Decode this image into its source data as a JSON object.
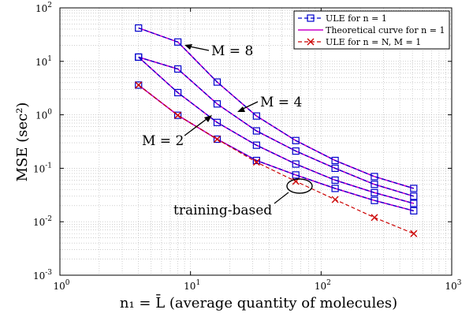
{
  "chart_data": {
    "type": "line",
    "xscale": "log",
    "yscale": "log",
    "xlim": [
      1,
      1000
    ],
    "ylim": [
      0.001,
      100
    ],
    "grid": true,
    "legend_position": "top-right",
    "xlabel": "n₁ = L̄ (average quantity of molecules)",
    "ylabel": "MSE (sec²)",
    "x_ticks": [
      {
        "value": 1,
        "base": "10",
        "exp": "0"
      },
      {
        "value": 10,
        "base": "10",
        "exp": "1"
      },
      {
        "value": 100,
        "base": "10",
        "exp": "2"
      },
      {
        "value": 1000,
        "base": "10",
        "exp": "3"
      }
    ],
    "y_ticks": [
      {
        "value": 0.001,
        "base": "10",
        "exp": "-3"
      },
      {
        "value": 0.01,
        "base": "10",
        "exp": "-2"
      },
      {
        "value": 0.1,
        "base": "10",
        "exp": "-1"
      },
      {
        "value": 1,
        "base": "10",
        "exp": "0"
      },
      {
        "value": 10,
        "base": "10",
        "exp": "1"
      },
      {
        "value": 100,
        "base": "10",
        "exp": "2"
      }
    ],
    "x": [
      4,
      8,
      16,
      32,
      64,
      128,
      256,
      512
    ],
    "series": [
      {
        "name": "ULE for n = 1",
        "group": "M = 1",
        "style": "sim",
        "values": [
          3.6,
          0.98,
          0.35,
          0.14,
          0.075,
          0.042,
          0.025,
          0.016
        ]
      },
      {
        "name": "Theoretical curve for n = 1",
        "group": "M = 1",
        "style": "theory",
        "values": [
          3.6,
          0.98,
          0.35,
          0.14,
          0.075,
          0.042,
          0.025,
          0.016
        ]
      },
      {
        "name": "ULE for n = 1",
        "group": "M = 2",
        "style": "sim",
        "values": [
          12,
          2.6,
          0.72,
          0.27,
          0.12,
          0.06,
          0.035,
          0.022
        ]
      },
      {
        "name": "Theoretical curve for n = 1",
        "group": "M = 2",
        "style": "theory",
        "values": [
          12,
          2.6,
          0.72,
          0.27,
          0.12,
          0.06,
          0.035,
          0.022
        ]
      },
      {
        "name": "ULE for n = 1",
        "group": "M = 4",
        "style": "sim",
        "values": [
          12,
          7.2,
          1.6,
          0.5,
          0.21,
          0.1,
          0.05,
          0.03
        ]
      },
      {
        "name": "Theoretical curve for n = 1",
        "group": "M = 4",
        "style": "theory",
        "values": [
          12,
          7.2,
          1.6,
          0.5,
          0.21,
          0.1,
          0.05,
          0.03
        ]
      },
      {
        "name": "ULE for n = 1",
        "group": "M = 8",
        "style": "sim",
        "values": [
          42,
          23,
          4.1,
          0.95,
          0.33,
          0.14,
          0.07,
          0.042
        ]
      },
      {
        "name": "Theoretical curve for n = 1",
        "group": "M = 8",
        "style": "theory",
        "values": [
          42,
          23,
          4.1,
          0.95,
          0.33,
          0.14,
          0.07,
          0.042
        ]
      },
      {
        "name": "ULE for n = N, M = 1",
        "group": "M = 1",
        "style": "ule_nN",
        "values": [
          3.6,
          0.98,
          0.35,
          0.13,
          0.057,
          0.026,
          0.012,
          0.006
        ]
      }
    ],
    "legend": [
      {
        "style": "sim",
        "label": "ULE for n = 1",
        "color": "#0000cc"
      },
      {
        "style": "theory",
        "label": "Theoretical curve for n = 1",
        "color": "#cc00cc"
      },
      {
        "style": "ule_nN",
        "label": "ULE for n = N, M = 1",
        "color": "#cc0000"
      }
    ],
    "annotations": {
      "m8": "M = 8",
      "m4": "M = 4",
      "m2": "M = 2",
      "training": "training-based"
    },
    "colors": {
      "sim": "#0000cc",
      "theory": "#cc00cc",
      "ule_nN": "#cc0000",
      "grid": "#b0b0b0"
    }
  }
}
